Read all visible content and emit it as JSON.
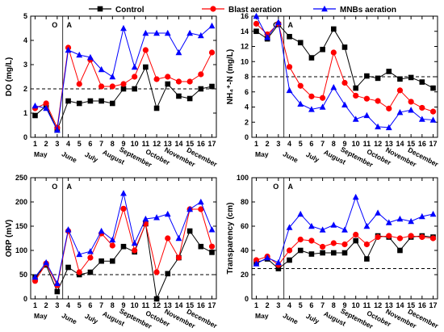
{
  "legend": {
    "items": [
      {
        "name": "Control",
        "color": "#000000",
        "marker": "square"
      },
      {
        "name": "Blast aeration",
        "color": "#ff0000",
        "marker": "circle"
      },
      {
        "name": "MNBs aeration",
        "color": "#0000ff",
        "marker": "triangle"
      }
    ]
  },
  "colors": {
    "control": "#000000",
    "blast": "#ff0000",
    "mnbs": "#0000ff"
  },
  "chart_data": [
    {
      "type": "line",
      "ylabel": "DO (mg/L)",
      "x": [
        1,
        2,
        3,
        4,
        5,
        6,
        7,
        8,
        9,
        10,
        11,
        12,
        13,
        14,
        15,
        16,
        17
      ],
      "xlim": [
        0.6,
        17.4
      ],
      "ylim": [
        0,
        5
      ],
      "yticks": [
        0,
        1,
        2,
        3,
        4,
        5
      ],
      "reference_line": 2,
      "phase_divider": 3.5,
      "phase_labels": [
        "O",
        "A"
      ],
      "months": [
        {
          "label": "May",
          "x": 1.5
        },
        {
          "label": "June",
          "x": 4
        },
        {
          "label": "July",
          "x": 6
        },
        {
          "label": "August",
          "x": 8
        },
        {
          "label": "September",
          "x": 10
        },
        {
          "label": "October",
          "x": 12
        },
        {
          "label": "November",
          "x": 14
        },
        {
          "label": "December",
          "x": 16
        }
      ],
      "series": [
        {
          "name": "Control",
          "values": [
            0.9,
            1.3,
            0.3,
            1.5,
            1.4,
            1.5,
            1.5,
            1.4,
            2.0,
            2.0,
            2.9,
            1.2,
            2.2,
            1.7,
            1.6,
            2.0,
            2.1
          ]
        },
        {
          "name": "Blast aeration",
          "values": [
            1.2,
            1.4,
            0.4,
            3.7,
            2.2,
            3.2,
            2.1,
            2.1,
            2.2,
            2.5,
            3.6,
            2.4,
            2.5,
            2.3,
            2.3,
            2.6,
            3.5
          ]
        },
        {
          "name": "MNBs aeration",
          "values": [
            1.3,
            1.2,
            0.3,
            3.6,
            3.4,
            3.3,
            2.8,
            2.5,
            4.5,
            2.9,
            4.3,
            4.3,
            4.3,
            3.5,
            4.3,
            4.2,
            4.6
          ]
        }
      ]
    },
    {
      "type": "line",
      "ylabel": "NH₄⁺-N (mg/L)",
      "x": [
        1,
        2,
        3,
        4,
        5,
        6,
        7,
        8,
        9,
        10,
        11,
        12,
        13,
        14,
        15,
        16,
        17
      ],
      "xlim": [
        0.6,
        17.4
      ],
      "ylim": [
        0,
        16
      ],
      "yticks": [
        0,
        2,
        4,
        6,
        8,
        10,
        12,
        14,
        16
      ],
      "reference_line": 8,
      "phase_divider": 3.5,
      "phase_labels": [
        "O",
        "A"
      ],
      "months": [
        {
          "label": "May",
          "x": 1.5
        },
        {
          "label": "June",
          "x": 4
        },
        {
          "label": "July",
          "x": 6
        },
        {
          "label": "August",
          "x": 8
        },
        {
          "label": "September",
          "x": 10
        },
        {
          "label": "October",
          "x": 12
        },
        {
          "label": "November",
          "x": 14
        },
        {
          "label": "December",
          "x": 16
        }
      ],
      "series": [
        {
          "name": "Control",
          "values": [
            14.0,
            13.0,
            14.9,
            13.3,
            12.5,
            10.5,
            11.6,
            14.3,
            11.9,
            6.5,
            8.1,
            7.8,
            8.7,
            7.7,
            7.9,
            7.3,
            6.5
          ]
        },
        {
          "name": "Blast aeration",
          "values": [
            15.0,
            13.6,
            15.0,
            9.3,
            6.8,
            5.4,
            5.2,
            11.2,
            7.2,
            5.5,
            5.1,
            4.8,
            3.8,
            6.2,
            4.7,
            3.9,
            3.4
          ]
        },
        {
          "name": "MNBs aeration",
          "values": [
            16.0,
            13.2,
            15.2,
            6.2,
            4.4,
            3.7,
            4.0,
            6.6,
            4.3,
            2.4,
            2.9,
            1.4,
            1.3,
            3.3,
            3.6,
            2.4,
            2.3
          ]
        }
      ]
    },
    {
      "type": "line",
      "ylabel": "ORP (mV)",
      "x": [
        1,
        2,
        3,
        4,
        5,
        6,
        7,
        8,
        9,
        10,
        11,
        12,
        13,
        14,
        15,
        16,
        17
      ],
      "xlim": [
        0.6,
        17.4
      ],
      "ylim": [
        0,
        250
      ],
      "yticks": [
        0,
        50,
        100,
        150,
        200,
        250
      ],
      "reference_line": 50,
      "phase_divider": 3.5,
      "phase_labels": [
        "O",
        "A"
      ],
      "months": [
        {
          "label": "May",
          "x": 1.5
        },
        {
          "label": "June",
          "x": 4
        },
        {
          "label": "July",
          "x": 6
        },
        {
          "label": "August",
          "x": 8
        },
        {
          "label": "September",
          "x": 10
        },
        {
          "label": "October",
          "x": 12
        },
        {
          "label": "November",
          "x": 14
        },
        {
          "label": "December",
          "x": 16
        }
      ],
      "series": [
        {
          "name": "Control",
          "values": [
            45,
            70,
            15,
            65,
            50,
            55,
            78,
            78,
            108,
            97,
            155,
            0,
            52,
            85,
            140,
            108,
            96
          ]
        },
        {
          "name": "Blast aeration",
          "values": [
            37,
            73,
            28,
            140,
            55,
            85,
            135,
            110,
            186,
            100,
            155,
            55,
            125,
            85,
            185,
            185,
            108
          ]
        },
        {
          "name": "MNBs aeration",
          "values": [
            45,
            75,
            32,
            143,
            92,
            98,
            140,
            122,
            218,
            115,
            165,
            168,
            175,
            125,
            185,
            200,
            143
          ]
        }
      ]
    },
    {
      "type": "line",
      "ylabel": "Transparency (cm)",
      "x": [
        1,
        2,
        3,
        4,
        5,
        6,
        7,
        8,
        9,
        10,
        11,
        12,
        13,
        14,
        15,
        16,
        17
      ],
      "xlim": [
        0.6,
        17.4
      ],
      "ylim": [
        0,
        100
      ],
      "yticks": [
        0,
        20,
        40,
        60,
        80,
        100
      ],
      "reference_line": 25,
      "phase_divider": 3.5,
      "phase_labels": [
        "O",
        "A"
      ],
      "months": [
        {
          "label": "May",
          "x": 1.5
        },
        {
          "label": "June",
          "x": 4
        },
        {
          "label": "July",
          "x": 6
        },
        {
          "label": "August",
          "x": 8
        },
        {
          "label": "September",
          "x": 10
        },
        {
          "label": "October",
          "x": 12
        },
        {
          "label": "November",
          "x": 14
        },
        {
          "label": "December",
          "x": 16
        }
      ],
      "series": [
        {
          "name": "Control",
          "values": [
            30,
            33,
            25,
            32,
            40,
            37,
            38,
            38,
            38,
            48,
            33,
            52,
            51,
            40,
            51,
            52,
            51
          ]
        },
        {
          "name": "Blast aeration",
          "values": [
            32,
            35,
            28,
            40,
            49,
            48,
            43,
            46,
            45,
            53,
            45,
            51,
            52,
            50,
            52,
            51,
            50
          ]
        },
        {
          "name": "MNBs aeration",
          "values": [
            29,
            34,
            30,
            59,
            70,
            60,
            57,
            61,
            57,
            84,
            60,
            71,
            63,
            66,
            64,
            68,
            70
          ]
        }
      ]
    }
  ]
}
